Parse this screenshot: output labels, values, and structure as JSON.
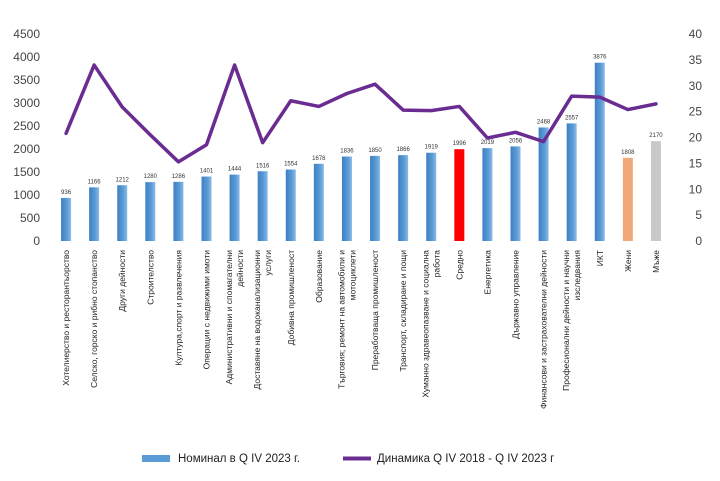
{
  "chart_data": {
    "type": "bar",
    "categories": [
      [
        "Хотелиерство и ресторантьорство"
      ],
      [
        "Селско, горско и рибно стопанство"
      ],
      [
        "Други дейности"
      ],
      [
        "Строителство"
      ],
      [
        "Култура,спорт и развлечения"
      ],
      [
        "Операции с недвижими имоти"
      ],
      [
        "Административни и спомагателни",
        "дейности"
      ],
      [
        "Доставяне на водоканализационни",
        "услуги"
      ],
      [
        "Добивна промишленост"
      ],
      [
        "Образование"
      ],
      [
        "Търговия; ремонт на автомобили и",
        "мотоциклети"
      ],
      [
        "Преработваща промишленост"
      ],
      [
        "Транспорт, складиране и пощи"
      ],
      [
        "Хуманно здравеопазване и социална",
        "работа"
      ],
      [
        "Средно"
      ],
      [
        "Енергетика"
      ],
      [
        "Държавно управление"
      ],
      [
        "Финансови и застрахователни дейности"
      ],
      [
        "Професионални дейности и научни",
        "изследвания"
      ],
      [
        "ИКТ"
      ],
      [
        "Жени"
      ],
      [
        "Мъже"
      ]
    ],
    "series": [
      {
        "name": "Номинал в Q IV 2023 г.",
        "type": "bar",
        "axis": "left",
        "values": [
          936,
          1166,
          1212,
          1280,
          1286,
          1401,
          1444,
          1516,
          1554,
          1678,
          1836,
          1850,
          1866,
          1919,
          1996,
          2019,
          2056,
          2468,
          2557,
          3876,
          1808,
          2170
        ],
        "labels": [
          "936",
          "1166",
          "1212",
          "1280",
          "1286",
          "1401",
          "1444",
          "1516",
          "1554",
          "1678",
          "1836",
          "1850",
          "1866",
          "1919",
          "1996",
          "2019",
          "2056",
          "2468",
          "2557",
          "3876",
          "1808",
          "2170"
        ],
        "highlight": {
          "14": "#ff0000",
          "20": "#f2a97a",
          "21": "#c9c9c9"
        }
      },
      {
        "name": "Динамика Q IV 2018  - Q IV 2023 г",
        "type": "line",
        "axis": "right",
        "values": [
          20.8,
          34,
          25.9,
          20.5,
          15.3,
          18.6,
          34,
          19,
          27.1,
          26,
          28.5,
          30.3,
          25.3,
          25.2,
          26,
          19.9,
          21,
          19.2,
          28,
          27.8,
          25.4,
          26.5
        ]
      }
    ],
    "y_left": {
      "min": 0,
      "max": 4500,
      "ticks": [
        0,
        500,
        1000,
        1500,
        2000,
        2500,
        3000,
        3500,
        4000,
        4500
      ]
    },
    "y_right": {
      "min": 0,
      "max": 40,
      "ticks": [
        0,
        5,
        10,
        15,
        20,
        25,
        30,
        35,
        40
      ]
    },
    "grid": false,
    "legend_position": "bottom",
    "colors": {
      "bar": "#5b9bd5",
      "line": "#6a2c91"
    }
  }
}
